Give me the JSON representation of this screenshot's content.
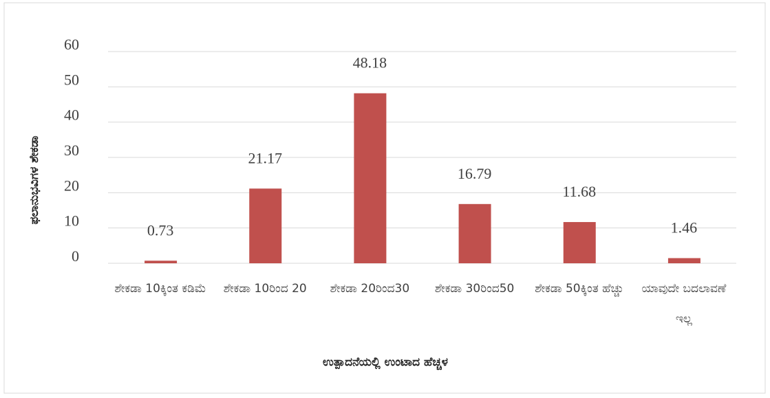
{
  "chart_data": {
    "type": "bar",
    "categories": [
      "ಶೇಕಡಾ 10ಕ್ಕಿಂತ ಕಡಿಮೆ",
      "ಶೇಕಡಾ 10ರಿಂದ 20",
      "ಶೇಕಡಾ 20ರಿಂದ30",
      "ಶೇಕಡಾ 30ರಿಂದ50",
      "ಶೇಕಡಾ 50ಕ್ಕಿಂತ ಹೆಚ್ಚು",
      "ಯಾವುದೇ ಬದಲಾವಣೆ ಇಲ್ಲ"
    ],
    "values": [
      0.73,
      21.17,
      48.18,
      16.79,
      11.68,
      1.46
    ],
    "color": "#c0504d",
    "ylim": [
      0,
      60
    ],
    "yticks": [
      0,
      10,
      20,
      30,
      40,
      50,
      60
    ],
    "grid": true,
    "x_label": "ಉತ್ಪಾದನೆಯಲ್ಲಿ ಉಂಟಾದ ಹೆಚ್ಚಳ",
    "y_label": "ಫಲಾನುಭವಿಗಳ ಶೇಕಡಾ"
  }
}
